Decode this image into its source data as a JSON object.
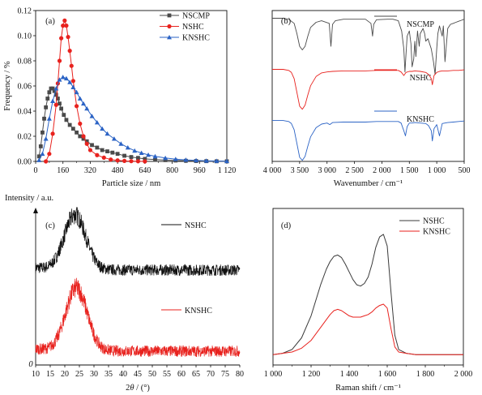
{
  "colors": {
    "NSCMP": "#4a4a4a",
    "NSHC": "#e8221e",
    "KNSHC": "#2b63c5",
    "black": "#111111"
  },
  "chart_data": [
    {
      "panel": "(a)",
      "type": "line",
      "xlabel": "Particle size / nm",
      "ylabel": "Frequency / %",
      "xlim": [
        0,
        1120
      ],
      "ylim": [
        0,
        0.12
      ],
      "xticks": [
        "0",
        "160",
        "320",
        "480",
        "640",
        "800",
        "960",
        "1 120"
      ],
      "yticks": [
        "0.00",
        "0.02",
        "0.04",
        "0.06",
        "0.08",
        "0.10",
        "0.12"
      ],
      "legend": [
        "NSCMP",
        "NSHC",
        "KNSHC"
      ],
      "legend_position": "top-right",
      "series": [
        {
          "name": "NSCMP",
          "marker": "square",
          "x": [
            20,
            30,
            40,
            50,
            60,
            70,
            80,
            90,
            100,
            110,
            120,
            130,
            140,
            150,
            165,
            180,
            200,
            220,
            240,
            260,
            280,
            300,
            330,
            360,
            390,
            420,
            450,
            480,
            520,
            560,
            600,
            640,
            700,
            760,
            820,
            880,
            940,
            1000,
            1060,
            1120
          ],
          "y": [
            0.004,
            0.012,
            0.023,
            0.034,
            0.043,
            0.05,
            0.055,
            0.058,
            0.058,
            0.056,
            0.053,
            0.05,
            0.046,
            0.042,
            0.037,
            0.033,
            0.029,
            0.026,
            0.023,
            0.02,
            0.018,
            0.016,
            0.013,
            0.011,
            0.009,
            0.008,
            0.007,
            0.006,
            0.0045,
            0.0035,
            0.0028,
            0.002,
            0.0014,
            0.001,
            0.0007,
            0.0005,
            0.0003,
            0.0002,
            0.0001,
            0.0001
          ]
        },
        {
          "name": "NSHC",
          "marker": "circle",
          "x": [
            60,
            80,
            100,
            120,
            130,
            140,
            150,
            160,
            170,
            180,
            190,
            200,
            210,
            220,
            240,
            260,
            280,
            300,
            320,
            360,
            400,
            440,
            480,
            520,
            560,
            600,
            640
          ],
          "y": [
            0.0,
            0.006,
            0.022,
            0.045,
            0.062,
            0.08,
            0.098,
            0.108,
            0.112,
            0.108,
            0.099,
            0.088,
            0.076,
            0.064,
            0.044,
            0.03,
            0.02,
            0.014,
            0.009,
            0.005,
            0.003,
            0.0015,
            0.0008,
            0.0004,
            0.0002,
            0.0001,
            0.0
          ]
        },
        {
          "name": "KNSHC",
          "marker": "triangle",
          "x": [
            20,
            40,
            60,
            80,
            100,
            120,
            140,
            160,
            180,
            200,
            220,
            240,
            260,
            280,
            300,
            330,
            360,
            390,
            420,
            460,
            500,
            540,
            580,
            620,
            660,
            700,
            760,
            820,
            880,
            940,
            1000,
            1060,
            1120
          ],
          "y": [
            0.001,
            0.006,
            0.018,
            0.034,
            0.048,
            0.058,
            0.065,
            0.067,
            0.066,
            0.063,
            0.059,
            0.055,
            0.05,
            0.046,
            0.042,
            0.036,
            0.031,
            0.026,
            0.022,
            0.018,
            0.014,
            0.011,
            0.0085,
            0.0067,
            0.0052,
            0.004,
            0.0027,
            0.0018,
            0.0012,
            0.0008,
            0.0005,
            0.0003,
            0.0002
          ]
        }
      ]
    },
    {
      "panel": "(b)",
      "type": "line",
      "xlabel": "Wavenumber / cm⁻¹",
      "xlim": [
        4000,
        500
      ],
      "xticks": [
        "4 000",
        "3 500",
        "3 000",
        "2 500",
        "2 000",
        "1 500",
        "1 000",
        "500"
      ],
      "legend": [
        "NSCMP",
        "NSHC",
        "KNSHC"
      ],
      "series": [
        {
          "name": "NSCMP",
          "offset": 2.0,
          "x": [
            4000,
            3800,
            3700,
            3600,
            3550,
            3500,
            3450,
            3400,
            3350,
            3300,
            3200,
            3100,
            2960,
            2930,
            2900,
            2850,
            2700,
            2500,
            2300,
            2200,
            2170,
            2150,
            2100,
            1900,
            1800,
            1700,
            1640,
            1600,
            1580,
            1560,
            1540,
            1500,
            1470,
            1450,
            1420,
            1400,
            1380,
            1350,
            1320,
            1300,
            1250,
            1220,
            1200,
            1160,
            1100,
            1060,
            1030,
            1000,
            980,
            950,
            900,
            880,
            850,
            800,
            750,
            700,
            650,
            600,
            550,
            500
          ],
          "y": [
            0.0,
            0.0,
            -0.02,
            -0.1,
            -0.3,
            -0.55,
            -0.62,
            -0.55,
            -0.35,
            -0.18,
            -0.08,
            -0.05,
            -0.1,
            -0.55,
            -0.12,
            -0.05,
            -0.02,
            -0.02,
            -0.02,
            -0.1,
            -0.35,
            -0.12,
            -0.03,
            -0.02,
            -0.02,
            -0.05,
            -0.25,
            -0.6,
            -1.05,
            -0.7,
            -0.35,
            -0.25,
            -0.5,
            -0.95,
            -0.8,
            -0.45,
            -0.75,
            -0.25,
            -0.55,
            -0.3,
            -0.2,
            -0.3,
            -0.45,
            -0.4,
            -0.6,
            -0.85,
            -1.1,
            -0.6,
            -0.3,
            -0.15,
            -0.35,
            -0.15,
            -0.85,
            -0.2,
            -0.12,
            -0.1,
            -0.08,
            -0.06,
            -0.04,
            -0.02
          ]
        },
        {
          "name": "NSHC",
          "offset": 1.0,
          "x": [
            4000,
            3800,
            3700,
            3650,
            3600,
            3550,
            3500,
            3450,
            3400,
            3350,
            3300,
            3200,
            3100,
            3000,
            2900,
            2700,
            2500,
            2300,
            2100,
            1900,
            1800,
            1700,
            1650,
            1600,
            1560,
            1500,
            1450,
            1400,
            1300,
            1200,
            1150,
            1100,
            1080,
            1050,
            1000,
            950,
            900,
            800,
            700,
            600,
            500
          ],
          "y": [
            0.0,
            0.0,
            -0.02,
            -0.06,
            -0.18,
            -0.45,
            -0.72,
            -0.78,
            -0.7,
            -0.5,
            -0.32,
            -0.14,
            -0.07,
            -0.05,
            -0.04,
            -0.03,
            -0.03,
            -0.03,
            -0.02,
            -0.02,
            -0.02,
            -0.02,
            -0.05,
            -0.12,
            -0.06,
            -0.04,
            -0.04,
            -0.03,
            -0.04,
            -0.06,
            -0.1,
            -0.18,
            -0.3,
            -0.12,
            -0.06,
            -0.04,
            -0.03,
            -0.03,
            -0.02,
            -0.02,
            -0.01
          ]
        },
        {
          "name": "KNSHC",
          "offset": 0.0,
          "x": [
            4000,
            3800,
            3700,
            3650,
            3600,
            3550,
            3500,
            3450,
            3400,
            3350,
            3300,
            3200,
            3100,
            3000,
            2950,
            2900,
            2700,
            2500,
            2300,
            2100,
            1900,
            1800,
            1700,
            1650,
            1600,
            1570,
            1540,
            1500,
            1450,
            1400,
            1300,
            1200,
            1150,
            1100,
            1080,
            1050,
            1000,
            950,
            900,
            800,
            700,
            600,
            500
          ],
          "y": [
            0.0,
            0.0,
            -0.02,
            -0.06,
            -0.18,
            -0.45,
            -0.72,
            -0.78,
            -0.7,
            -0.5,
            -0.32,
            -0.14,
            -0.07,
            -0.05,
            -0.08,
            -0.04,
            -0.03,
            -0.03,
            -0.03,
            -0.02,
            -0.02,
            -0.02,
            -0.02,
            -0.05,
            -0.2,
            -0.3,
            -0.12,
            -0.05,
            -0.05,
            -0.04,
            -0.05,
            -0.06,
            -0.1,
            -0.2,
            -0.4,
            -0.16,
            -0.08,
            -0.3,
            -0.06,
            -0.04,
            -0.03,
            -0.02,
            -0.01
          ]
        }
      ]
    },
    {
      "panel": "(c)",
      "type": "line",
      "xlabel": "2θ / (°)",
      "ylabel": "Intensity / a.u.",
      "xlim": [
        10,
        80
      ],
      "xticks": [
        "10",
        "15",
        "20",
        "25",
        "30",
        "35",
        "40",
        "45",
        "50",
        "55",
        "60",
        "65",
        "70",
        "75",
        "80"
      ],
      "origin_label": "0",
      "legend": [
        "NSHC",
        "KNSHC"
      ],
      "series": [
        {
          "name": "NSHC",
          "offset": 1.0,
          "baseline": 0.0,
          "peak_center": 23.5,
          "peak_height": 0.48,
          "noise": 0.05
        },
        {
          "name": "KNSHC",
          "offset": 0.0,
          "baseline": 0.0,
          "peak_center": 24.0,
          "peak_height": 0.55,
          "noise": 0.05
        }
      ]
    },
    {
      "panel": "(d)",
      "type": "line",
      "xlabel": "Raman shift / cm⁻¹",
      "xlim": [
        1000,
        2000
      ],
      "xticks": [
        "1 000",
        "1 200",
        "1 400",
        "1 600",
        "1 800",
        "2 000"
      ],
      "legend": [
        "NSHC",
        "KNSHC"
      ],
      "series": [
        {
          "name": "NSHC",
          "x": [
            1000,
            1050,
            1100,
            1150,
            1200,
            1250,
            1280,
            1300,
            1320,
            1340,
            1360,
            1380,
            1400,
            1420,
            1440,
            1460,
            1480,
            1500,
            1520,
            1540,
            1560,
            1580,
            1600,
            1620,
            1640,
            1660,
            1700,
            1750,
            1800,
            1900,
            2000
          ],
          "y": [
            0.02,
            0.03,
            0.06,
            0.15,
            0.32,
            0.56,
            0.68,
            0.74,
            0.78,
            0.79,
            0.77,
            0.72,
            0.66,
            0.6,
            0.56,
            0.55,
            0.57,
            0.62,
            0.72,
            0.85,
            0.93,
            0.95,
            0.86,
            0.5,
            0.17,
            0.06,
            0.03,
            0.02,
            0.02,
            0.02,
            0.02
          ]
        },
        {
          "name": "KNSHC",
          "x": [
            1000,
            1050,
            1100,
            1150,
            1200,
            1250,
            1280,
            1300,
            1320,
            1340,
            1360,
            1380,
            1400,
            1420,
            1440,
            1460,
            1480,
            1500,
            1520,
            1540,
            1560,
            1580,
            1600,
            1620,
            1640,
            1660,
            1700,
            1750,
            1800,
            1900,
            2000
          ],
          "y": [
            0.02,
            0.03,
            0.04,
            0.07,
            0.13,
            0.23,
            0.29,
            0.33,
            0.36,
            0.37,
            0.36,
            0.34,
            0.32,
            0.31,
            0.31,
            0.31,
            0.32,
            0.33,
            0.35,
            0.38,
            0.4,
            0.41,
            0.38,
            0.22,
            0.08,
            0.04,
            0.03,
            0.02,
            0.02,
            0.02,
            0.02
          ]
        }
      ]
    }
  ]
}
